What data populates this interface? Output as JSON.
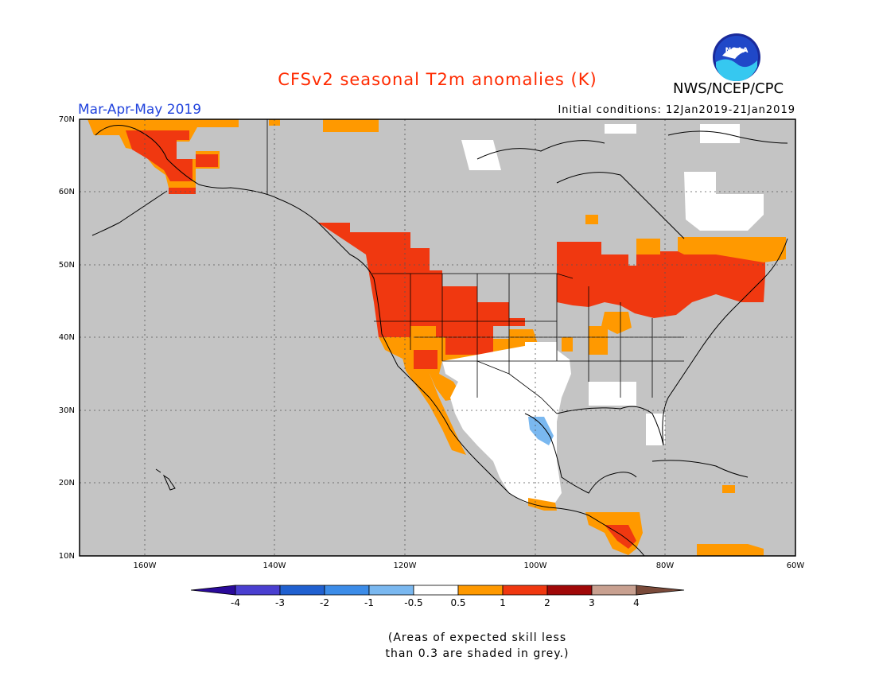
{
  "header": {
    "title": "CFSv2 seasonal T2m anomalies (K)",
    "period": "Mar-Apr-May 2019",
    "initial_conditions": "Initial conditions: 12Jan2019-21Jan2019",
    "agency": "NWS/NCEP/CPC",
    "logo_label": "NOAA"
  },
  "map": {
    "lat_labels": [
      "70N",
      "60N",
      "50N",
      "40N",
      "30N",
      "20N",
      "10N"
    ],
    "lon_labels": [
      "160W",
      "140W",
      "120W",
      "100W",
      "80W",
      "60W"
    ],
    "lat_range": [
      10,
      70
    ],
    "lon_range": [
      -170,
      -60
    ],
    "grid": "dotted"
  },
  "colorbar": {
    "ticks": [
      "-4",
      "-3",
      "-2",
      "-1",
      "-0.5",
      "0.5",
      "1",
      "2",
      "3",
      "4"
    ],
    "colors": [
      "#2a0a9a",
      "#4a3fd0",
      "#2060d0",
      "#3c8ce8",
      "#7ab8f0",
      "#ffffff",
      "#ff9900",
      "#f03810",
      "#a00808",
      "#c8a090",
      "#7a4a3a"
    ]
  },
  "caption": {
    "line1": "(Areas of expected skill less",
    "line2": "than 0.3 are shaded in grey.)"
  }
}
